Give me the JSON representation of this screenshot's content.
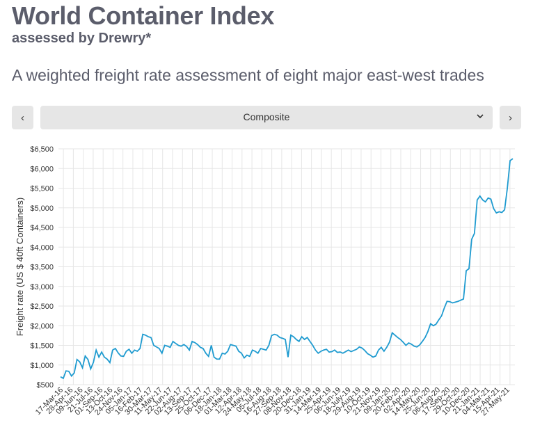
{
  "header": {
    "title": "World Container Index",
    "subtitle": "assessed by Drewry*",
    "description": "A weighted freight rate assessment of eight major east-west trades"
  },
  "controls": {
    "prev_label": "‹",
    "next_label": "›",
    "selected": "Composite",
    "dropdown_arrow": "⌄"
  },
  "colors": {
    "line": "#1f9bd0",
    "grid": "#e6e6e6"
  },
  "chart_data": {
    "type": "line",
    "title": "World Container Index - Composite",
    "xlabel": "",
    "ylabel": "Freight rate (US $ 40ft Containers)",
    "ylim": [
      500,
      6500
    ],
    "yticks": [
      500,
      1000,
      1500,
      2000,
      2500,
      3000,
      3500,
      4000,
      4500,
      5000,
      5500,
      6000,
      6500
    ],
    "ytick_labels": [
      "$500",
      "$1,000",
      "$1,500",
      "$2,000",
      "$2,500",
      "$3,000",
      "$3,500",
      "$4,000",
      "$4,500",
      "$5,000",
      "$5,500",
      "$6,000",
      "$6,500"
    ],
    "xtick_labels": [
      "17-Mar-16",
      "28-Apr-16",
      "09-Jun-16",
      "21-Jul-16",
      "01-Sep-16",
      "13-Oct-16",
      "24-Nov-16",
      "05-Jan-17",
      "16-Feb-17",
      "30-Mar-17",
      "11-May-17",
      "22-Jun-17",
      "02-Aug-17",
      "13-Sep-17",
      "25-Oct-17",
      "06-Dec-17",
      "18-Jan-18",
      "01-Mar-18",
      "12-Apr-18",
      "24-May-18",
      "05-Jul-18",
      "16-Aug-18",
      "27-Sep-18",
      "08-Nov-18",
      "20-Dec-18",
      "31-Jan-19",
      "14-Mar-19",
      "25-Apr-19",
      "06-Jun-19",
      "18-July-19",
      "29-Aug-19",
      "10-Oct-19",
      "21-Nov-19",
      "09-Jan-20",
      "20-Feb-20",
      "02-Apr-20",
      "14-May-20",
      "25-Jun-20",
      "06-Aug-20",
      "17-Sep-20",
      "29-Oct-20",
      "10-Dec-20",
      "21-Jan-21",
      "04-Mar-21",
      "15-Apr-21",
      "27-May-21"
    ],
    "series": [
      {
        "name": "Composite",
        "values": [
          700,
          660,
          850,
          840,
          720,
          800,
          1140,
          1080,
          930,
          1230,
          1140,
          900,
          1070,
          1380,
          1200,
          1330,
          1200,
          1150,
          1060,
          1380,
          1420,
          1310,
          1230,
          1220,
          1350,
          1400,
          1300,
          1380,
          1350,
          1420,
          1780,
          1760,
          1720,
          1700,
          1500,
          1460,
          1420,
          1300,
          1500,
          1480,
          1450,
          1600,
          1550,
          1500,
          1480,
          1520,
          1470,
          1380,
          1600,
          1570,
          1520,
          1450,
          1420,
          1300,
          1220,
          1500,
          1200,
          1150,
          1150,
          1300,
          1280,
          1350,
          1520,
          1500,
          1480,
          1350,
          1300,
          1180,
          1250,
          1220,
          1380,
          1350,
          1300,
          1420,
          1400,
          1380,
          1500,
          1750,
          1780,
          1760,
          1700,
          1680,
          1650,
          1200,
          1760,
          1720,
          1650,
          1600,
          1720,
          1650,
          1700,
          1600,
          1500,
          1380,
          1300,
          1350,
          1380,
          1400,
          1330,
          1340,
          1380,
          1320,
          1330,
          1300,
          1340,
          1380,
          1340,
          1370,
          1400,
          1460,
          1430,
          1370,
          1290,
          1250,
          1200,
          1230,
          1380,
          1450,
          1350,
          1450,
          1580,
          1820,
          1760,
          1700,
          1650,
          1580,
          1500,
          1560,
          1530,
          1480,
          1460,
          1510,
          1600,
          1700,
          1850,
          2050,
          2000,
          2040,
          2150,
          2250,
          2450,
          2620,
          2610,
          2580,
          2600,
          2620,
          2650,
          2680,
          3400,
          3450,
          4200,
          4350,
          5200,
          5300,
          5200,
          5150,
          5250,
          5220,
          4980,
          4870,
          4900,
          4880,
          4950,
          5500,
          6200,
          6250
        ]
      }
    ]
  }
}
